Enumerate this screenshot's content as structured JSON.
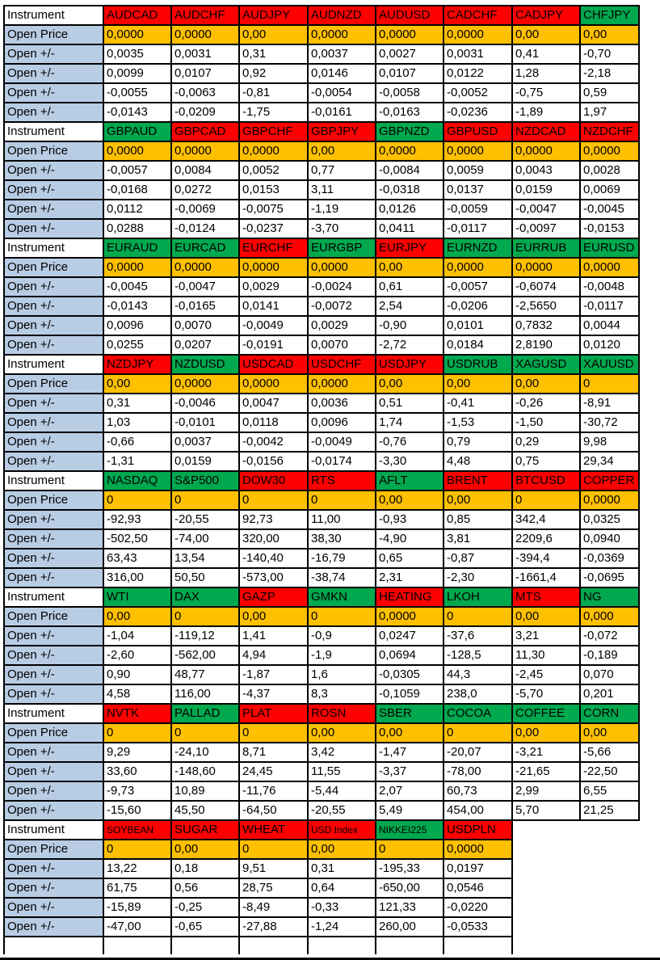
{
  "colors": {
    "red": "#FF0000",
    "green": "#00A84E",
    "open_price_orange": "#FFC000",
    "row_label_blue": "#B8CCE4",
    "grid_black": "#000000"
  },
  "table": {
    "row_labels": {
      "instrument": "Instrument",
      "open_price": "Open Price",
      "open_change": "Open +/-"
    },
    "blocks": [
      {
        "instruments": [
          {
            "name": "AUDCAD",
            "color": "red",
            "open": "0,0000",
            "changes": [
              "0,0035",
              "0,0099",
              "-0,0055",
              "-0,0143"
            ]
          },
          {
            "name": "AUDCHF",
            "color": "red",
            "open": "0,0000",
            "changes": [
              "0,0031",
              "0,0107",
              "-0,0063",
              "-0,0209"
            ]
          },
          {
            "name": "AUDJPY",
            "color": "red",
            "open": "0,00",
            "changes": [
              "0,31",
              "0,92",
              "-0,81",
              "-1,75"
            ]
          },
          {
            "name": "AUDNZD",
            "color": "red",
            "open": "0,0000",
            "changes": [
              "0,0037",
              "0,0146",
              "-0,0054",
              "-0,0161"
            ]
          },
          {
            "name": "AUDUSD",
            "color": "red",
            "open": "0,0000",
            "changes": [
              "0,0027",
              "0,0107",
              "-0,0058",
              "-0,0163"
            ]
          },
          {
            "name": "CADCHF",
            "color": "red",
            "open": "0,0000",
            "changes": [
              "0,0031",
              "0,0122",
              "-0,0052",
              "-0,0236"
            ]
          },
          {
            "name": "CADJPY",
            "color": "red",
            "open": "0,00",
            "changes": [
              "0,41",
              "1,28",
              "-0,75",
              "-1,89"
            ]
          },
          {
            "name": "CHFJPY",
            "color": "green",
            "open": "0,00",
            "changes": [
              "-0,70",
              "-2,18",
              "0,59",
              "1,97"
            ]
          }
        ]
      },
      {
        "instruments": [
          {
            "name": "GBPAUD",
            "color": "green",
            "open": "0,0000",
            "changes": [
              "-0,0057",
              "-0,0168",
              "0,0112",
              "0,0288"
            ]
          },
          {
            "name": "GBPCAD",
            "color": "red",
            "open": "0,0000",
            "changes": [
              "0,0084",
              "0,0272",
              "-0,0069",
              "-0,0124"
            ]
          },
          {
            "name": "GBPCHF",
            "color": "red",
            "open": "0,0000",
            "changes": [
              "0,0052",
              "0,0153",
              "-0,0075",
              "-0,0237"
            ]
          },
          {
            "name": "GBPJPY",
            "color": "red",
            "open": "0,00",
            "changes": [
              "0,77",
              "3,11",
              "-1,19",
              "-3,70"
            ]
          },
          {
            "name": "GBPNZD",
            "color": "green",
            "open": "0,0000",
            "changes": [
              "-0,0084",
              "-0,0318",
              "0,0126",
              "0,0411"
            ]
          },
          {
            "name": "GBPUSD",
            "color": "red",
            "open": "0,0000",
            "changes": [
              "0,0059",
              "0,0137",
              "-0,0059",
              "-0,0117"
            ]
          },
          {
            "name": "NZDCAD",
            "color": "red",
            "open": "0,0000",
            "changes": [
              "0,0043",
              "0,0159",
              "-0,0047",
              "-0,0097"
            ]
          },
          {
            "name": "NZDCHF",
            "color": "red",
            "open": "0,0000",
            "changes": [
              "0,0028",
              "0,0069",
              "-0,0045",
              "-0,0153"
            ]
          }
        ]
      },
      {
        "instruments": [
          {
            "name": "EURAUD",
            "color": "green",
            "open": "0,0000",
            "changes": [
              "-0,0045",
              "-0,0143",
              "0,0096",
              "0,0255"
            ]
          },
          {
            "name": "EURCAD",
            "color": "green",
            "open": "0,0000",
            "changes": [
              "-0,0047",
              "-0,0165",
              "0,0070",
              "0,0207"
            ]
          },
          {
            "name": "EURCHF",
            "color": "red",
            "open": "0,0000",
            "changes": [
              "0,0029",
              "0,0141",
              "-0,0049",
              "-0,0191"
            ]
          },
          {
            "name": "EURGBP",
            "color": "green",
            "open": "0,0000",
            "changes": [
              "-0,0024",
              "-0,0072",
              "0,0029",
              "0,0070"
            ]
          },
          {
            "name": "EURJPY",
            "color": "red",
            "open": "0,00",
            "changes": [
              "0,61",
              "2,54",
              "-0,90",
              "-2,72"
            ]
          },
          {
            "name": "EURNZD",
            "color": "green",
            "open": "0,0000",
            "changes": [
              "-0,0057",
              "-0,0206",
              "0,0101",
              "0,0184"
            ]
          },
          {
            "name": "EURRUB",
            "color": "green",
            "open": "0,0000",
            "changes": [
              "-0,6074",
              "-2,5650",
              "0,7832",
              "2,8190"
            ]
          },
          {
            "name": "EURUSD",
            "color": "green",
            "open": "0,0000",
            "changes": [
              "-0,0048",
              "-0,0117",
              "0,0044",
              "0,0120"
            ]
          }
        ]
      },
      {
        "instruments": [
          {
            "name": "NZDJPY",
            "color": "red",
            "open": "0,00",
            "changes": [
              "0,31",
              "1,03",
              "-0,66",
              "-1,31"
            ]
          },
          {
            "name": "NZDUSD",
            "color": "green",
            "open": "0,0000",
            "changes": [
              "-0,0046",
              "-0,0101",
              "0,0037",
              "0,0159"
            ]
          },
          {
            "name": "USDCAD",
            "color": "red",
            "open": "0,0000",
            "changes": [
              "0,0047",
              "0,0118",
              "-0,0042",
              "-0,0156"
            ]
          },
          {
            "name": "USDCHF",
            "color": "red",
            "open": "0,0000",
            "changes": [
              "0,0036",
              "0,0096",
              "-0,0049",
              "-0,0174"
            ]
          },
          {
            "name": "USDJPY",
            "color": "red",
            "open": "0,00",
            "changes": [
              "0,51",
              "1,74",
              "-0,76",
              "-3,30"
            ]
          },
          {
            "name": "USDRUB",
            "color": "green",
            "open": "0,00",
            "changes": [
              "-0,41",
              "-1,53",
              "0,79",
              "4,48"
            ]
          },
          {
            "name": "XAGUSD",
            "color": "green",
            "open": "0,00",
            "changes": [
              "-0,26",
              "-1,50",
              "0,29",
              "0,75"
            ]
          },
          {
            "name": "XAUUSD",
            "color": "green",
            "open": "0",
            "changes": [
              "-8,91",
              "-30,72",
              "9,98",
              "29,34"
            ]
          }
        ]
      },
      {
        "instruments": [
          {
            "name": "NASDAQ",
            "color": "green",
            "open": "0",
            "changes": [
              "-92,93",
              "-502,50",
              "63,43",
              "316,00"
            ]
          },
          {
            "name": "S&P500",
            "color": "green",
            "open": "0",
            "changes": [
              "-20,55",
              "-74,00",
              "13,54",
              "50,50"
            ]
          },
          {
            "name": "DOW30",
            "color": "red",
            "open": "0",
            "changes": [
              "92,73",
              "320,00",
              "-140,40",
              "-573,00"
            ]
          },
          {
            "name": "RTS",
            "color": "red",
            "open": "0",
            "changes": [
              "11,00",
              "38,30",
              "-16,79",
              "-38,74"
            ]
          },
          {
            "name": "AFLT",
            "color": "green",
            "open": "0,00",
            "changes": [
              "-0,93",
              "-4,90",
              "0,65",
              "2,31"
            ]
          },
          {
            "name": "BRENT",
            "color": "red",
            "open": "0,00",
            "changes": [
              "0,85",
              "3,81",
              "-0,87",
              "-2,30"
            ]
          },
          {
            "name": "BTCUSD",
            "color": "red",
            "open": "0",
            "changes": [
              "342,4",
              "2209,6",
              "-394,4",
              "-1661,4"
            ]
          },
          {
            "name": "COPPER",
            "color": "red",
            "open": "0,0000",
            "changes": [
              "0,0325",
              "0,0940",
              "-0,0369",
              "-0,0695"
            ]
          }
        ]
      },
      {
        "instruments": [
          {
            "name": "WTI",
            "color": "green",
            "open": "0,00",
            "changes": [
              "-1,04",
              "-2,60",
              "0,90",
              "4,58"
            ]
          },
          {
            "name": "DAX",
            "color": "green",
            "open": "0",
            "changes": [
              "-119,12",
              "-562,00",
              "48,77",
              "116,00"
            ]
          },
          {
            "name": "GAZP",
            "color": "red",
            "open": "0,00",
            "changes": [
              "1,41",
              "4,94",
              "-1,87",
              "-4,37"
            ]
          },
          {
            "name": "GMKN",
            "color": "green",
            "open": "0",
            "changes": [
              "-0,9",
              "-1,9",
              "1,6",
              "8,3"
            ]
          },
          {
            "name": "HEATING",
            "color": "red",
            "open": "0,0000",
            "changes": [
              "0,0247",
              "0,0694",
              "-0,0305",
              "-0,1059"
            ]
          },
          {
            "name": "LKOH",
            "color": "green",
            "open": "0",
            "changes": [
              "-37,6",
              "-128,5",
              "44,3",
              "238,0"
            ]
          },
          {
            "name": "MTS",
            "color": "red",
            "open": "0,00",
            "changes": [
              "3,21",
              "11,30",
              "-2,45",
              "-5,70"
            ]
          },
          {
            "name": "NG",
            "color": "green",
            "open": "0,000",
            "changes": [
              "-0,072",
              "-0,189",
              "0,070",
              "0,201"
            ]
          }
        ]
      },
      {
        "instruments": [
          {
            "name": "NVTK",
            "color": "red",
            "open": "0",
            "changes": [
              "9,29",
              "33,60",
              "-9,73",
              "-15,60"
            ]
          },
          {
            "name": "PALLAD",
            "color": "green",
            "open": "0",
            "changes": [
              "-24,10",
              "-148,60",
              "10,89",
              "45,50"
            ]
          },
          {
            "name": "PLAT",
            "color": "red",
            "open": "0",
            "changes": [
              "8,71",
              "24,45",
              "-11,76",
              "-64,50"
            ]
          },
          {
            "name": "ROSN",
            "color": "red",
            "open": "0,00",
            "changes": [
              "3,42",
              "11,55",
              "-5,44",
              "-20,55"
            ]
          },
          {
            "name": "SBER",
            "color": "green",
            "open": "0,00",
            "changes": [
              "-1,47",
              "-3,37",
              "2,07",
              "5,49"
            ]
          },
          {
            "name": "COCOA",
            "color": "green",
            "open": "0",
            "changes": [
              "-20,07",
              "-78,00",
              "60,73",
              "454,00"
            ]
          },
          {
            "name": "COFFEE",
            "color": "green",
            "open": "0,00",
            "changes": [
              "-3,21",
              "-21,65",
              "2,99",
              "5,70"
            ]
          },
          {
            "name": "CORN",
            "color": "green",
            "open": "0,00",
            "changes": [
              "-5,66",
              "-22,50",
              "6,55",
              "21,25"
            ]
          }
        ]
      },
      {
        "instruments": [
          {
            "name": "SOYBEAN",
            "color": "red",
            "small": true,
            "open": "0",
            "changes": [
              "13,22",
              "61,75",
              "-15,89",
              "-47,00"
            ]
          },
          {
            "name": "SUGAR",
            "color": "red",
            "open": "0,00",
            "changes": [
              "0,18",
              "0,56",
              "-0,25",
              "-0,65"
            ]
          },
          {
            "name": "WHEAT",
            "color": "red",
            "open": "0",
            "changes": [
              "9,51",
              "28,75",
              "-8,49",
              "-27,88"
            ]
          },
          {
            "name": "USD Index",
            "color": "red",
            "small": true,
            "open": "0,00",
            "changes": [
              "0,31",
              "0,64",
              "-0,33",
              "-1,24"
            ]
          },
          {
            "name": "NIKKEI225",
            "color": "green",
            "small": true,
            "open": "0",
            "changes": [
              "-195,33",
              "-650,00",
              "121,33",
              "260,00"
            ]
          },
          {
            "name": "USDPLN",
            "color": "red",
            "open": "0,0000",
            "changes": [
              "0,0197",
              "0,0546",
              "-0,0220",
              "-0,0533"
            ]
          }
        ]
      }
    ]
  }
}
